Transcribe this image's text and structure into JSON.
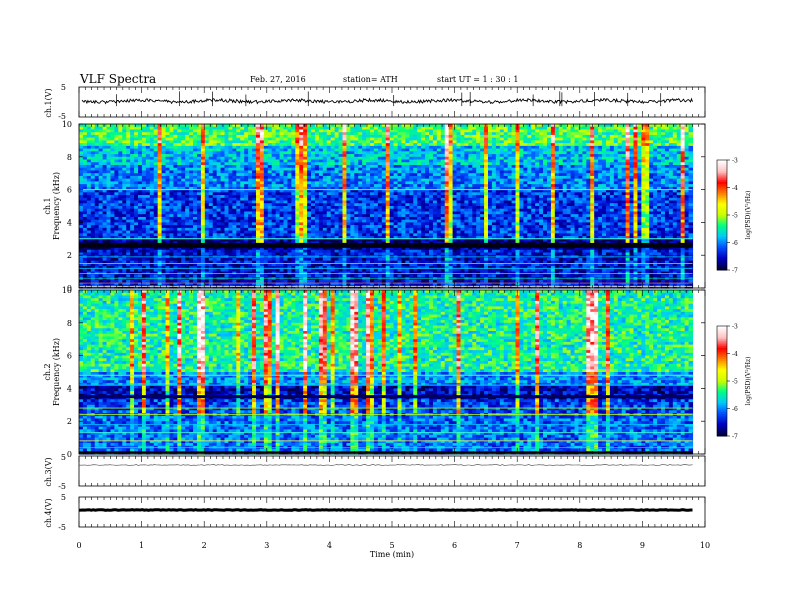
{
  "header": {
    "title": "VLF  Spectra",
    "date": "Feb. 27, 2016",
    "station": "station= ATH",
    "start_time": "start  UT  =    1  : 30 : 1"
  },
  "chart_data": [
    {
      "type": "line",
      "id": "ch1-waveform",
      "ylabel": "ch.1(V)",
      "yticks": [
        "5",
        "-5"
      ],
      "ylim": [
        -5,
        5
      ],
      "trace_level": 0.3
    },
    {
      "type": "heatmap",
      "id": "ch1-spectrogram",
      "ylabel": "ch.1",
      "ylabel2": "Frequency  (kHz)",
      "yticks": [
        "0",
        "2",
        "4",
        "6",
        "8",
        "10"
      ],
      "ylim": [
        0,
        10
      ],
      "colorbar": {
        "label": "log(PSD)(V²/Hz)",
        "ticks": [
          "-3",
          "-4",
          "-5",
          "-6",
          "-7"
        ],
        "range": [
          -7,
          -3
        ],
        "colors": [
          "#000040",
          "#0000c0",
          "#0050ff",
          "#00c8ff",
          "#00ff80",
          "#c8ff00",
          "#ffff00",
          "#ff8000",
          "#ff0000",
          "#ffc0c0",
          "#ffffff"
        ]
      }
    },
    {
      "type": "heatmap",
      "id": "ch2-spectrogram",
      "ylabel": "ch.2",
      "ylabel2": "Frequency  (kHz)",
      "yticks": [
        "0",
        "2",
        "4",
        "6",
        "8",
        "10"
      ],
      "ylim": [
        0,
        10
      ],
      "colorbar": {
        "label": "log(PSD)(V²/Hz)",
        "ticks": [
          "-3",
          "-4",
          "-5",
          "-6",
          "-7"
        ],
        "range": [
          -7,
          -3
        ],
        "colors": [
          "#000040",
          "#0000c0",
          "#0050ff",
          "#00c8ff",
          "#00ff80",
          "#c8ff00",
          "#ffff00",
          "#ff8000",
          "#ff0000",
          "#ffc0c0",
          "#ffffff"
        ]
      }
    },
    {
      "type": "line",
      "id": "ch3-waveform",
      "ylabel": "ch.3(V)",
      "yticks": [
        "5",
        "-5"
      ],
      "ylim": [
        -5,
        5
      ],
      "trace_level": 0
    },
    {
      "type": "line",
      "id": "ch4-waveform",
      "ylabel": "ch.4(V)",
      "yticks": [
        "5",
        "-5"
      ],
      "ylim": [
        -5,
        5
      ],
      "trace_level": 0
    }
  ],
  "xaxis": {
    "label": "Time  (min)",
    "ticks": [
      "0",
      "1",
      "2",
      "3",
      "4",
      "5",
      "6",
      "7",
      "8",
      "9",
      "10"
    ],
    "xlim": [
      0,
      10
    ],
    "data_end": 9.8
  }
}
